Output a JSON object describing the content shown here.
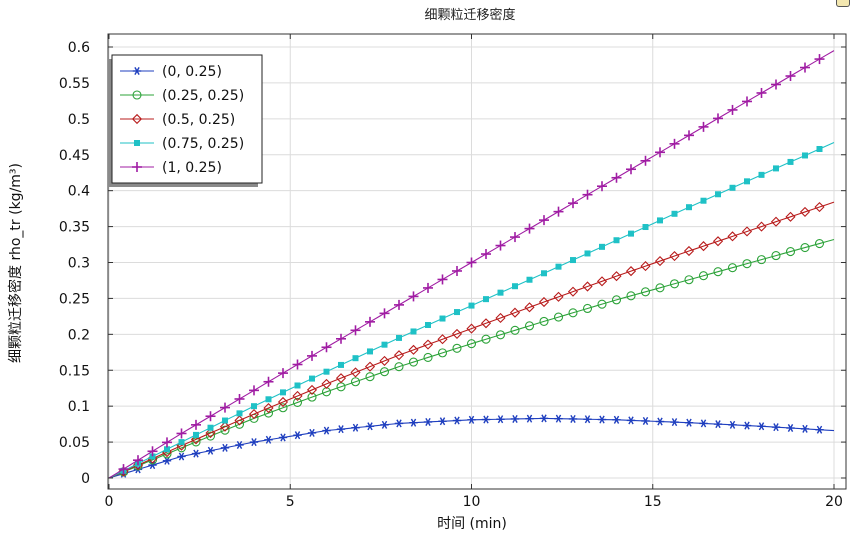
{
  "chart_data": {
    "type": "line",
    "title": "细颗粒迁移密度",
    "xlabel": "时间 (min)",
    "ylabel": "细颗粒迁移密度 rho_tr (kg/m³)",
    "xlim": [
      0,
      20
    ],
    "ylim": [
      0,
      0.6
    ],
    "xticks": [
      0,
      5,
      10,
      15,
      20
    ],
    "yticks": [
      0,
      0.05,
      0.1,
      0.15,
      0.2,
      0.25,
      0.3,
      0.35,
      0.4,
      0.45,
      0.5,
      0.55,
      0.6
    ],
    "ytick_labels": [
      "0",
      "0.05",
      "0.1",
      "0.15",
      "0.2",
      "0.25",
      "0.3",
      "0.35",
      "0.4",
      "0.45",
      "0.5",
      "0.55",
      "0.6"
    ],
    "xtick_labels": [
      "0",
      "5",
      "10",
      "15",
      "20"
    ],
    "grid": true,
    "legend_position": "top-left",
    "marker_x": [
      0.4,
      0.8,
      1.2,
      1.6,
      2.0,
      2.4,
      2.8,
      3.2,
      3.6,
      4.0,
      4.4,
      4.8,
      5.2,
      5.6,
      6.0,
      6.4,
      6.8,
      7.2,
      7.6,
      8.0,
      8.4,
      8.8,
      9.2,
      9.6,
      10.0,
      10.4,
      10.8,
      11.2,
      11.6,
      12.0,
      12.4,
      12.8,
      13.2,
      13.6,
      14.0,
      14.4,
      14.8,
      15.2,
      15.6,
      16.0,
      16.4,
      16.8,
      17.2,
      17.6,
      18.0,
      18.4,
      18.8,
      19.2,
      19.6
    ],
    "series": [
      {
        "name": "(0, 0.25)",
        "color": "#1f3fbf",
        "marker": "star",
        "x": [
          0,
          2,
          4,
          6,
          8,
          10,
          12,
          14,
          16,
          18,
          20
        ],
        "y": [
          0,
          0.03,
          0.05,
          0.066,
          0.076,
          0.081,
          0.083,
          0.081,
          0.077,
          0.072,
          0.066
        ]
      },
      {
        "name": "(0.25, 0.25)",
        "color": "#2da33a",
        "marker": "circle",
        "x": [
          0,
          2,
          4,
          6,
          8,
          10,
          12,
          14,
          16,
          18,
          20
        ],
        "y": [
          0,
          0.042,
          0.083,
          0.12,
          0.155,
          0.187,
          0.218,
          0.248,
          0.276,
          0.304,
          0.332
        ]
      },
      {
        "name": "(0.5, 0.25)",
        "color": "#b81c1c",
        "marker": "diamond",
        "x": [
          0,
          2,
          4,
          6,
          8,
          10,
          12,
          14,
          16,
          18,
          20
        ],
        "y": [
          0,
          0.045,
          0.089,
          0.131,
          0.171,
          0.208,
          0.245,
          0.281,
          0.316,
          0.35,
          0.384
        ]
      },
      {
        "name": "(0.75, 0.25)",
        "color": "#1fc1c6",
        "marker": "square",
        "x": [
          0,
          2,
          4,
          6,
          8,
          10,
          12,
          14,
          16,
          18,
          20
        ],
        "y": [
          0,
          0.05,
          0.1,
          0.148,
          0.195,
          0.24,
          0.285,
          0.331,
          0.377,
          0.422,
          0.467
        ]
      },
      {
        "name": "(1, 0.25)",
        "color": "#a01ca3",
        "marker": "plus",
        "x": [
          0,
          2,
          4,
          6,
          8,
          10,
          12,
          14,
          16,
          18,
          20
        ],
        "y": [
          0,
          0.062,
          0.122,
          0.182,
          0.241,
          0.3,
          0.359,
          0.418,
          0.477,
          0.536,
          0.595
        ]
      }
    ]
  }
}
